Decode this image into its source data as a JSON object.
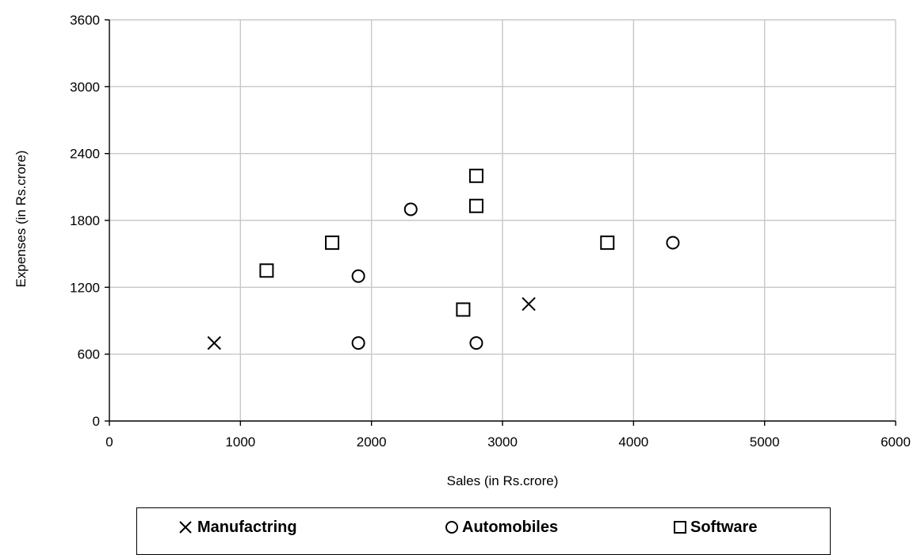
{
  "chart_data": {
    "type": "scatter",
    "xlabel": "Sales (in Rs.crore)",
    "ylabel": "Expenses (in Rs.crore)",
    "xlim": [
      0,
      6000
    ],
    "ylim": [
      0,
      3600
    ],
    "xticks": [
      0,
      1000,
      2000,
      3000,
      4000,
      5000,
      6000
    ],
    "yticks": [
      0,
      600,
      1200,
      1800,
      2400,
      3000,
      3600
    ],
    "grid": true,
    "legend_position": "bottom",
    "series": [
      {
        "name": "Manufactring",
        "marker": "x",
        "points": [
          [
            800,
            700
          ],
          [
            3200,
            1050
          ]
        ]
      },
      {
        "name": "Automobiles",
        "marker": "circle",
        "points": [
          [
            1900,
            700
          ],
          [
            1900,
            1300
          ],
          [
            2300,
            1900
          ],
          [
            2800,
            700
          ],
          [
            4300,
            1600
          ]
        ]
      },
      {
        "name": "Software",
        "marker": "square",
        "points": [
          [
            1200,
            1350
          ],
          [
            1700,
            1600
          ],
          [
            2700,
            1000
          ],
          [
            2800,
            1930
          ],
          [
            2800,
            2200
          ],
          [
            3800,
            1600
          ]
        ]
      }
    ]
  }
}
